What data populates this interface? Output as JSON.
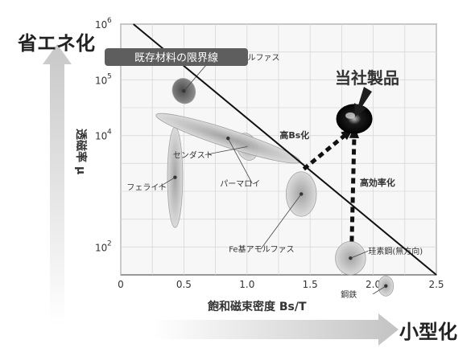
{
  "labels": {
    "top_left": "省エネ化",
    "bottom_right": "小型化",
    "y_axis": "透磁率 μ",
    "x_axis": "飽和磁束密度 Bs/T",
    "boundary_banner": "既存材料の限界線",
    "highlight": "当社製品"
  },
  "colors": {
    "plot_bg": "#f7f7f7",
    "grid": "#d8d8d8",
    "text": "#333333",
    "dark_series": "#1e1e1e",
    "ellipse_fill": "#b7b7b7"
  },
  "chart_data": {
    "type": "scatter",
    "xlim": [
      0,
      2.5
    ],
    "ylim_log10": [
      1.5,
      6
    ],
    "xlabel": "飽和磁束密度 Bs/T",
    "ylabel": "透磁率 μ",
    "x_ticks": [
      "0",
      "0.5",
      "1.0",
      "1.5",
      "2.0",
      "2.5"
    ],
    "y_ticks": [
      {
        "base": "10",
        "exp": "6",
        "value": 6
      },
      {
        "base": "10",
        "exp": "5",
        "value": 5
      },
      {
        "base": "10",
        "exp": "4",
        "value": 4
      },
      {
        "base": "10",
        "exp": "2",
        "value": 2
      }
    ],
    "limit_line": [
      [
        0.1,
        6
      ],
      [
        2.5,
        1.5
      ]
    ],
    "regions": [
      {
        "label": "Co基アモルファス",
        "x": 0.5,
        "y": 4.8,
        "rx": 0.09,
        "ry": 0.23,
        "rot": -20,
        "dark": true
      },
      {
        "label": "フェライト",
        "x": 0.43,
        "y": 3.25,
        "rx": 0.06,
        "ry": 0.9,
        "rot": 0
      },
      {
        "label": "センダスト",
        "x": 1.0,
        "y": 3.8,
        "rx": 0.08,
        "ry": 0.25,
        "rot": -20
      },
      {
        "label": "パーマロイ",
        "x": 0.85,
        "y": 3.95,
        "rx": 0.6,
        "ry": 0.16,
        "rot": 18
      },
      {
        "label": "Fe基アモルファス",
        "x": 1.43,
        "y": 2.95,
        "rx": 0.12,
        "ry": 0.4,
        "rot": 0
      },
      {
        "label": "珪素鋼(無方向)",
        "x": 1.82,
        "y": 1.8,
        "rx": 0.12,
        "ry": 0.3,
        "rot": 0
      },
      {
        "label": "鋼鉄",
        "x": 2.1,
        "y": 1.3,
        "rx": 0.06,
        "ry": 0.18,
        "rot": 0
      }
    ],
    "product": {
      "label": "当社製品",
      "x": 1.85,
      "y": 4.3
    },
    "arrows": [
      {
        "label": "高Bs化",
        "from": [
          1.45,
          3.4
        ],
        "to": [
          1.8,
          4.05
        ]
      },
      {
        "label": "高効率化",
        "from": [
          1.83,
          2.1
        ],
        "to": [
          1.85,
          4.05
        ]
      }
    ]
  }
}
